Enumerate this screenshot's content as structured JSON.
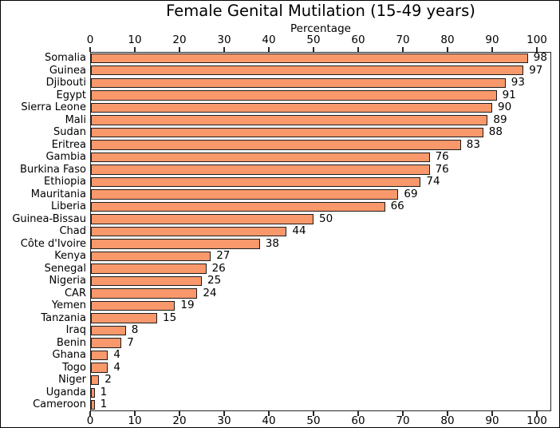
{
  "chart_data": {
    "type": "bar",
    "orientation": "horizontal",
    "title": "Female Genital Mutilation (15-49 years)",
    "xlabel": "Percentage",
    "xlabel_position": "top",
    "categories": [
      "Somalia",
      "Guinea",
      "Djibouti",
      "Egypt",
      "Sierra Leone",
      "Mali",
      "Sudan",
      "Eritrea",
      "Gambia",
      "Burkina Faso",
      "Ethiopia",
      "Mauritania",
      "Liberia",
      "Guinea-Bissau",
      "Chad",
      "Côte d'Ivoire",
      "Kenya",
      "Senegal",
      "Nigeria",
      "CAR",
      "Yemen",
      "Tanzania",
      "Iraq",
      "Benin",
      "Ghana",
      "Togo",
      "Niger",
      "Uganda",
      "Cameroon"
    ],
    "values": [
      98,
      97,
      93,
      91,
      90,
      89,
      88,
      83,
      76,
      76,
      74,
      69,
      66,
      50,
      44,
      38,
      27,
      26,
      25,
      24,
      19,
      15,
      8,
      7,
      4,
      4,
      2,
      1,
      1
    ],
    "value_labels_shown": true,
    "xticks": [
      0,
      10,
      20,
      30,
      40,
      50,
      60,
      70,
      80,
      90,
      100
    ],
    "xlim": [
      0,
      103.2
    ],
    "tick_axes": "top_and_bottom",
    "grid": false,
    "legend": false,
    "colors": {
      "bar_fill": "#F8986B",
      "bar_edge": "#1C1C1C",
      "axis": "#262626",
      "text": "#000000",
      "background": "#FFFFFF"
    }
  }
}
